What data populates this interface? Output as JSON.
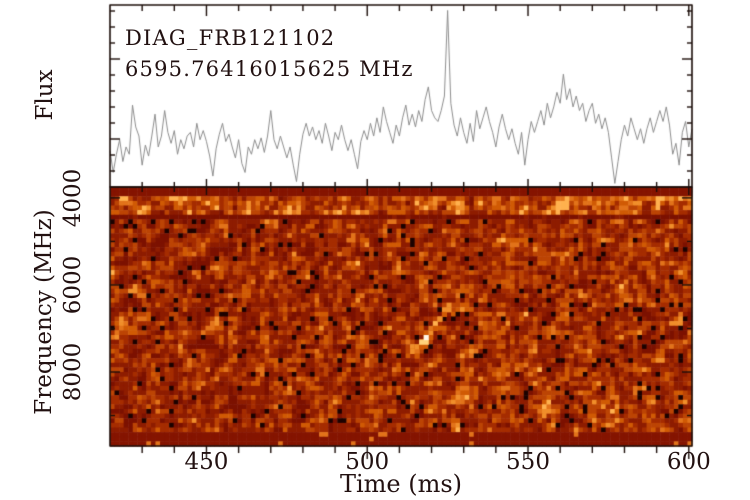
{
  "labels": {
    "source": "DIAG_FRB121102",
    "center_frequency": "6595.76416015625 MHz",
    "flux_axis": "Flux",
    "frequency_axis": "Frequency (MHz)",
    "time_axis": "Time (ms)"
  },
  "colors": {
    "background": "#ffffff",
    "frame": "#1c0e0a",
    "text": "#221111",
    "flux_curve": "#8e8e8e",
    "speck_black": "#1c0200"
  },
  "chart_data": [
    {
      "type": "line",
      "panel": "flux-timeseries",
      "title": "DIAG_FRB121102",
      "subtitle": "6595.76416015625 MHz",
      "ylabel": "Flux",
      "xlim": [
        420,
        601
      ],
      "x_start": 420,
      "x_step_ms": 1,
      "x_ticks_major": [
        450,
        500,
        550,
        600
      ],
      "x_tick_minor_step": 10,
      "peak_time_ms": 525,
      "values": [
        0.2,
        0.08,
        0.18,
        0.26,
        0.14,
        0.22,
        0.18,
        0.45,
        0.33,
        0.28,
        0.12,
        0.23,
        0.17,
        0.28,
        0.4,
        0.22,
        0.28,
        0.42,
        0.3,
        0.24,
        0.31,
        0.18,
        0.26,
        0.21,
        0.28,
        0.3,
        0.22,
        0.35,
        0.26,
        0.31,
        0.25,
        0.17,
        0.06,
        0.21,
        0.29,
        0.35,
        0.25,
        0.29,
        0.22,
        0.16,
        0.26,
        0.13,
        0.08,
        0.22,
        0.18,
        0.26,
        0.21,
        0.27,
        0.19,
        0.28,
        0.42,
        0.26,
        0.21,
        0.28,
        0.22,
        0.16,
        0.22,
        0.12,
        0.03,
        0.18,
        0.29,
        0.35,
        0.28,
        0.33,
        0.26,
        0.31,
        0.24,
        0.35,
        0.28,
        0.2,
        0.3,
        0.26,
        0.34,
        0.26,
        0.2,
        0.26,
        0.18,
        0.1,
        0.25,
        0.31,
        0.26,
        0.35,
        0.28,
        0.38,
        0.3,
        0.44,
        0.36,
        0.3,
        0.24,
        0.34,
        0.28,
        0.38,
        0.45,
        0.34,
        0.4,
        0.33,
        0.42,
        0.36,
        0.48,
        0.55,
        0.42,
        0.38,
        0.36,
        0.42,
        0.5,
        0.97,
        0.46,
        0.34,
        0.28,
        0.38,
        0.3,
        0.24,
        0.35,
        0.25,
        0.42,
        0.32,
        0.38,
        0.44,
        0.36,
        0.3,
        0.22,
        0.33,
        0.4,
        0.32,
        0.26,
        0.32,
        0.24,
        0.18,
        0.3,
        0.12,
        0.26,
        0.36,
        0.3,
        0.36,
        0.42,
        0.34,
        0.46,
        0.38,
        0.44,
        0.52,
        0.46,
        0.62,
        0.48,
        0.54,
        0.44,
        0.5,
        0.42,
        0.46,
        0.36,
        0.42,
        0.46,
        0.35,
        0.4,
        0.32,
        0.38,
        0.3,
        0.16,
        0.02,
        0.14,
        0.26,
        0.34,
        0.28,
        0.38,
        0.32,
        0.26,
        0.32,
        0.24,
        0.32,
        0.38,
        0.3,
        0.36,
        0.42,
        0.36,
        0.44,
        0.34,
        0.18,
        0.24,
        0.12,
        0.3,
        0.36,
        0.22,
        0.32
      ]
    },
    {
      "type": "heatmap",
      "panel": "dynamic-spectrum",
      "xlabel": "Time (ms)",
      "ylabel": "Frequency (MHz)",
      "xlim": [
        420,
        601
      ],
      "ylim_top_mhz": 3750,
      "ylim_bottom_mhz": 9700,
      "x_ticks_major": [
        450,
        500,
        550,
        600
      ],
      "x_tick_minor_step": 10,
      "y_ticks_major": [
        4000,
        6000,
        8000
      ],
      "y_ticks_minor": [
        5000,
        7000,
        9000
      ],
      "noise": {
        "seed": 20121102,
        "rows": 56,
        "cols": 128,
        "speck_probability": 0.05,
        "right_side_brightening": 0.07
      },
      "palette": [
        {
          "upto": 0.34,
          "color": "#7c1100"
        },
        {
          "upto": 0.52,
          "color": "#8e1c00"
        },
        {
          "upto": 0.64,
          "color": "#a52c00"
        },
        {
          "upto": 0.75,
          "color": "#bc4404"
        },
        {
          "upto": 0.84,
          "color": "#d05a04"
        },
        {
          "upto": 0.91,
          "color": "#e2731a"
        },
        {
          "upto": 0.97,
          "color": "#f08e2a"
        },
        {
          "upto": 1.1,
          "color": "#ffb14e"
        }
      ],
      "flagged_bands": {
        "top_dark_rows": 2,
        "bright_band_row_start": 2,
        "bright_band_row_end": 5,
        "dark_row_after_band": 6,
        "bottom_dark_rows": 3,
        "edge_band_color": "#851400",
        "bottom_dot_probability": 0.035
      },
      "dispersed_burst": {
        "t_start_ms": 514.5,
        "f_start_mhz": 7560,
        "t_end_ms": 526.0,
        "f_end_mhz": 6480,
        "brightest_t_ms": 518.5,
        "brightest_f_mhz": 7160,
        "brightest_color": "#fff6e6",
        "halo_color": "#ffd27a"
      }
    }
  ]
}
